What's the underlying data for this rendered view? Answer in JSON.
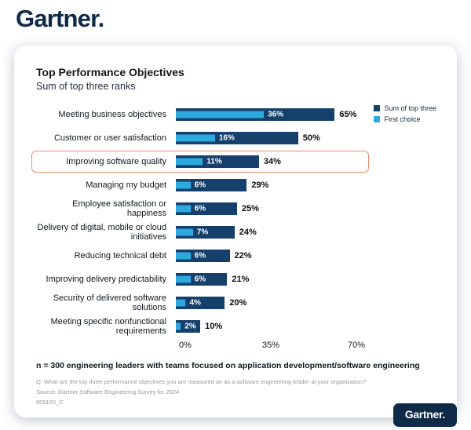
{
  "brand": {
    "logo": "Gartner.",
    "badge_logo": "Gartner.",
    "color": "#0e2a47"
  },
  "chart_data": {
    "type": "bar",
    "orientation": "horizontal",
    "title": "Top Performance Objectives",
    "subtitle": "Sum of top three ranks",
    "categories": [
      "Meeting business objectives",
      "Customer or user satisfaction",
      "Improving software quality",
      "Managing my budget",
      "Employee satisfaction or happiness",
      "Delivery of digital, mobile or cloud initiatives",
      "Reducing technical debt",
      "Improving delivery predictability",
      "Security of delivered software solutions",
      "Meeting specific nonfunctional requirements"
    ],
    "series": [
      {
        "name": "Sum of top three",
        "color": "#15406b",
        "values": [
          65,
          50,
          34,
          29,
          25,
          24,
          22,
          21,
          20,
          10
        ]
      },
      {
        "name": "First choice",
        "color": "#2ca9df",
        "values": [
          36,
          16,
          11,
          6,
          6,
          7,
          6,
          6,
          4,
          2
        ]
      }
    ],
    "value_suffix": "%",
    "xlim": [
      0,
      70
    ],
    "xticks": [
      "0%",
      "35%",
      "70%"
    ],
    "highlighted_category": "Improving software quality",
    "highlight_color": "#ef8a70",
    "legend_position": "top-right",
    "grid": false
  },
  "footer": {
    "note": "n = 300 engineering leaders with teams focused on application development/software engineering",
    "question": "Q. What are the top three performance objectives you are measured on as a software engineering leader at your organization?",
    "source": "Source: Gartner Software Engineering Survey for 2024",
    "doc_id": "805100_C"
  }
}
